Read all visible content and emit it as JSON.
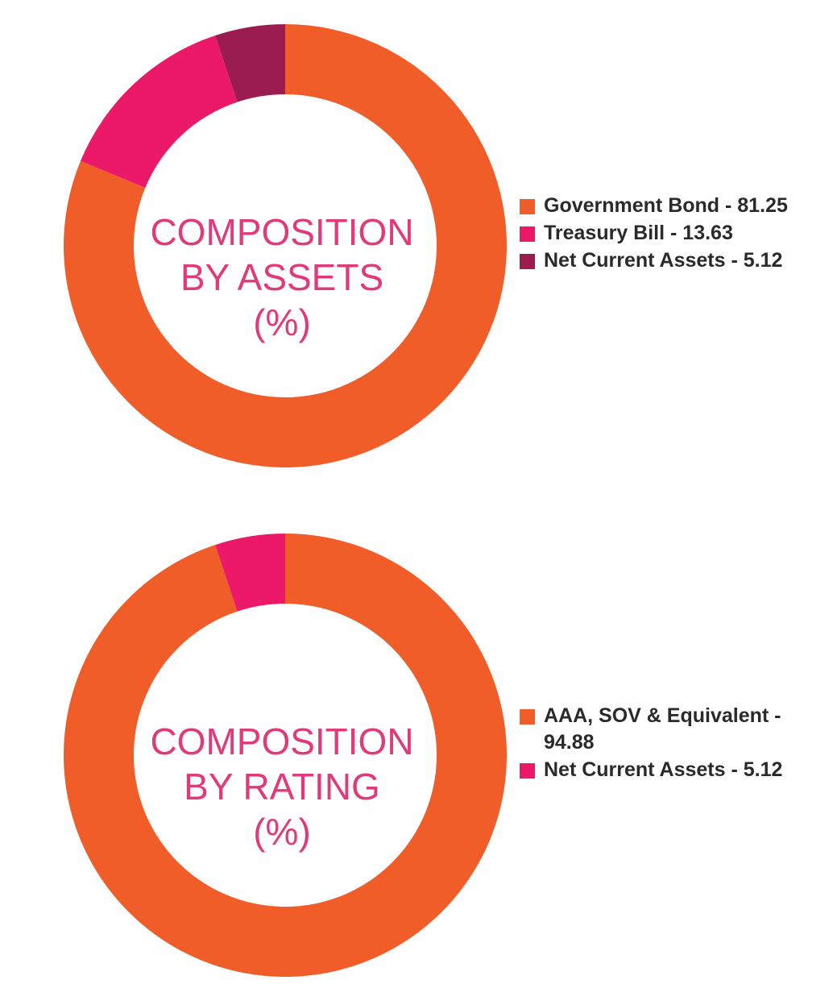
{
  "chart_data": [
    {
      "type": "pie",
      "title_lines": [
        "COMPOSITION",
        "BY ASSETS",
        "(%)"
      ],
      "categories": [
        "Government Bond",
        "Treasury Bill",
        "Net Current Assets"
      ],
      "values": [
        81.25,
        13.63,
        5.12
      ],
      "colors": [
        "#f05d28",
        "#ec1868",
        "#9b1c4e"
      ],
      "legend_labels": [
        "Government Bond - 81.25",
        "Treasury Bill - 13.63",
        "Net Current Assets - 5.12"
      ],
      "legend_position": "right"
    },
    {
      "type": "pie",
      "title_lines": [
        "COMPOSITION",
        "BY RATING",
        "(%)"
      ],
      "categories": [
        "AAA, SOV & Equivalent",
        "Net Current Assets"
      ],
      "values": [
        94.88,
        5.12
      ],
      "colors": [
        "#f05d28",
        "#ec1868"
      ],
      "legend_labels": [
        "AAA, SOV & Equivalent - 94.88",
        "Net Current Assets - 5.12"
      ],
      "legend_position": "right"
    }
  ]
}
